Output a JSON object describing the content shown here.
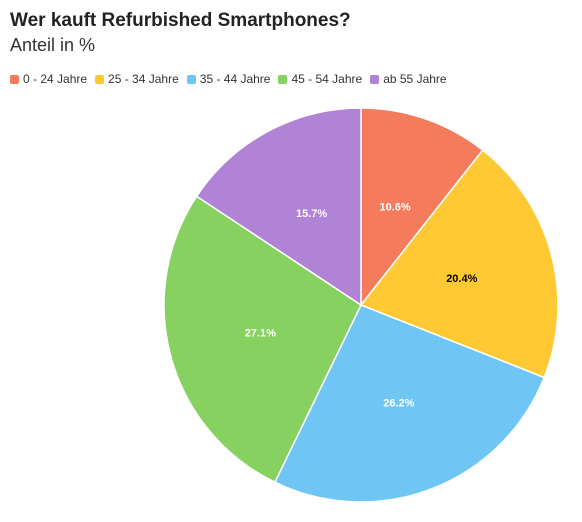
{
  "chart_data": {
    "type": "pie",
    "title": "Wer kauft Refurbished Smartphones?",
    "subtitle": "Anteil in %",
    "legend_position": "top-left",
    "slices": [
      {
        "label": "0 - 24 Jahre",
        "value": 10.6,
        "display": "10.6%",
        "color": "#f47b5c",
        "text_color": "#ffffff"
      },
      {
        "label": "25 - 34 Jahre",
        "value": 20.4,
        "display": "20.4%",
        "color": "#ffc933",
        "text_color": "#000000"
      },
      {
        "label": "35 - 44 Jahre",
        "value": 26.2,
        "display": "26.2%",
        "color": "#6fc6f5",
        "text_color": "#ffffff"
      },
      {
        "label": "45 - 54 Jahre",
        "value": 27.1,
        "display": "27.1%",
        "color": "#86d160",
        "text_color": "#ffffff"
      },
      {
        "label": "ab 55 Jahre",
        "value": 15.7,
        "display": "15.7%",
        "color": "#b183d6",
        "text_color": "#ffffff"
      }
    ]
  }
}
